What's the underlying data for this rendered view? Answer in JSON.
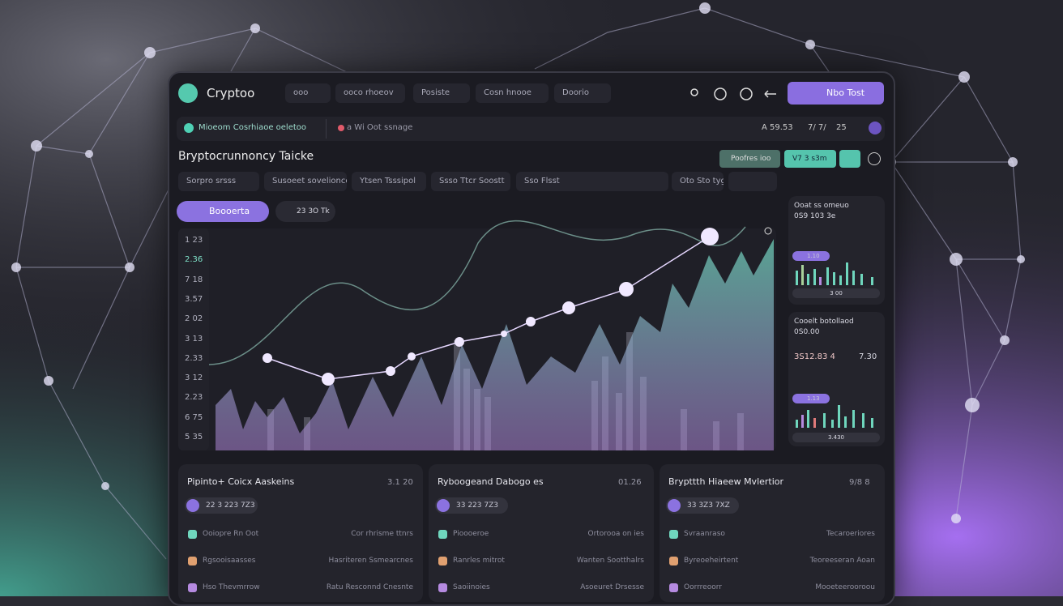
{
  "nav": {
    "brand": "Cryptoo",
    "items": [
      "ooo",
      "ooco rhoeov",
      "Posiste",
      "Cosn hnooe",
      "Doorio"
    ],
    "button": "Nbo Tost"
  },
  "status": {
    "left": "Mioeom Cosrhiaoe oeletoo",
    "middle": "a Wi Oot ssnage",
    "right": [
      "A 59.53",
      "7/ 7/",
      "25"
    ]
  },
  "header": {
    "title": "Bryptocrunnoncy Taicke",
    "buttons": [
      "Poofres ioo",
      "V7 3 s3m"
    ]
  },
  "filters": [
    "Sorpro srsss",
    "Susoeet sovelionce",
    "Ytsen Tsssipol",
    "Ssso Ttcr Soostt",
    "Sso Flsst",
    "Oto Sto tygs"
  ],
  "chart": {
    "toggle": "Boooerta",
    "badge": "23 3O Tk",
    "y_labels": [
      "1 23",
      "2.36",
      "7 18",
      "3.57",
      "2 02",
      "3 13",
      "2.33",
      "3 12",
      "2.23",
      "6 75",
      "5 35"
    ]
  },
  "side_cards": [
    {
      "title": "Ooat ss omeuo",
      "value": "0S9 103 3e",
      "chip": "1.10",
      "footer": "3 00"
    },
    {
      "title": "Cooelt botollaod",
      "value": "0S0.00",
      "stat_left": "3S12.83 4",
      "stat_right": "7.30",
      "chip": "1.13",
      "footer": "3.430"
    }
  ],
  "cards": [
    {
      "title": "Pipinto+ Coicx Aaskeins",
      "value": "3.1 20",
      "chip": "22 3 223 7Z3",
      "rows": [
        [
          "Ooiopre Rn Oot",
          "Cor rhrisme ttnrs"
        ],
        [
          "Rgsooisaasses",
          "Hasriteren Ssmearcnes"
        ],
        [
          "Hso Thevmrrow",
          "Ratu Resconnd Cnesnte"
        ]
      ]
    },
    {
      "title": "Ryboogeand Dabogo es",
      "value": "01.26",
      "chip": "33 223 7Z3",
      "rows": [
        [
          "Pioooeroe",
          "Ortorooa on ies"
        ],
        [
          "Ranrles mitrot",
          "Wanten Sootthalrs"
        ],
        [
          "Saoiinoies",
          "Asoeuret Drsesse"
        ]
      ]
    },
    {
      "title": "Brypttth Hiaeew Mvlertior",
      "value": "9/8 8",
      "chip": "33 3Z3 7XZ",
      "rows": [
        [
          "Svraanraso",
          "Tecaroeriores"
        ],
        [
          "Byreoeheirtent",
          "Teoreeseran  Aoan"
        ],
        [
          "Oorrreoorr",
          "Mooeteerooroou"
        ]
      ]
    }
  ]
}
